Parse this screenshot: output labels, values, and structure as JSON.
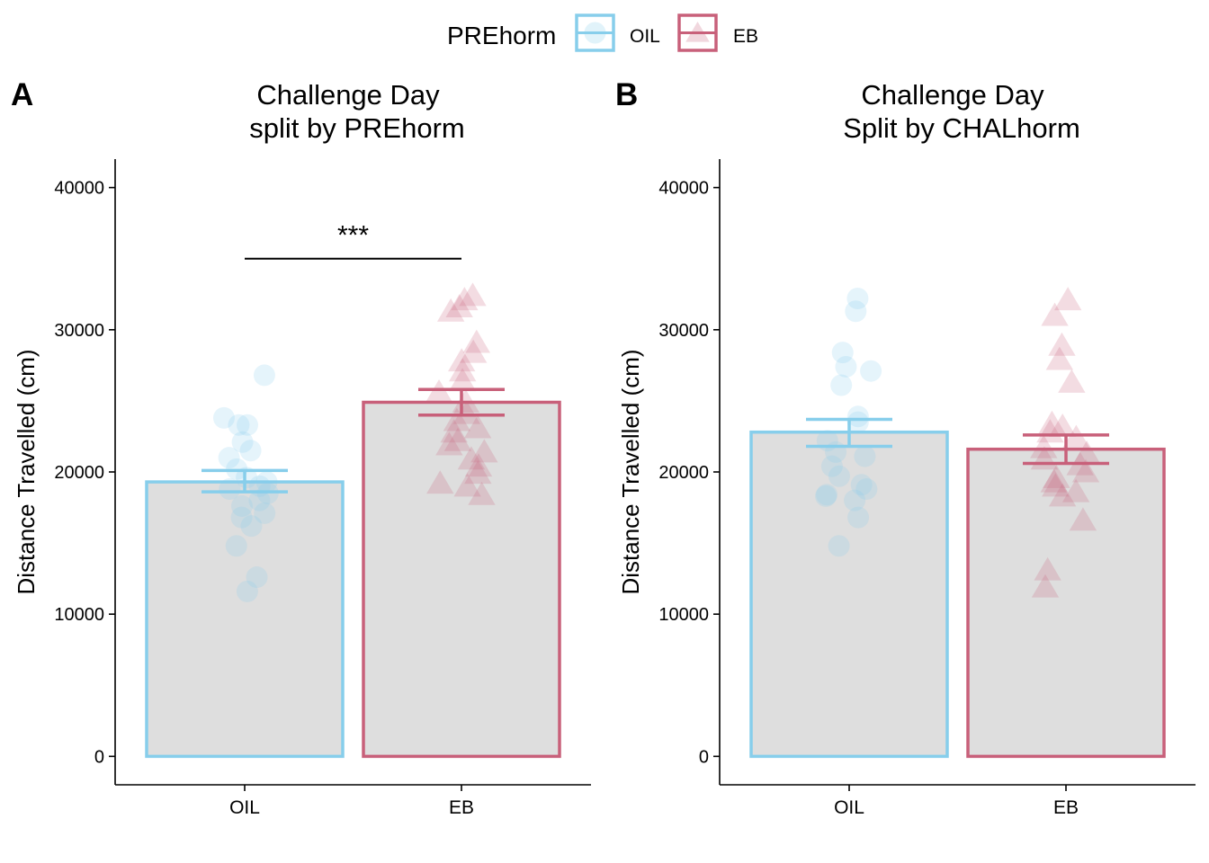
{
  "legend": {
    "title": "PREhorm",
    "items": [
      {
        "label": "OIL",
        "color": "#87CEEB",
        "shape": "circle"
      },
      {
        "label": "EB",
        "color": "#C8607A",
        "shape": "triangle"
      }
    ]
  },
  "chart_data": [
    {
      "type": "bar",
      "panel_label": "A",
      "title": "Challenge Day",
      "subtitle": "split by PREhorm",
      "xlabel": "",
      "ylabel": "Distance Travelled (cm)",
      "ylim": [
        -2000,
        42000
      ],
      "yticks": [
        0,
        10000,
        20000,
        30000,
        40000
      ],
      "categories": [
        "OIL",
        "EB"
      ],
      "colors": [
        "#87CEEB",
        "#C8607A"
      ],
      "values": [
        19300,
        24900
      ],
      "error": [
        [
          18600,
          20100
        ],
        [
          24000,
          25800
        ]
      ],
      "points": [
        {
          "group": "OIL",
          "values": [
            26800,
            23800,
            23300,
            23300,
            22100,
            21500,
            21000,
            20200,
            19600,
            19300,
            19000,
            18800,
            18500,
            18000,
            17600,
            17100,
            16800,
            16200,
            14800,
            12600,
            11600
          ]
        },
        {
          "group": "EB",
          "values": [
            32300,
            32000,
            31500,
            31200,
            29000,
            28300,
            27700,
            27000,
            26300,
            25500,
            24800,
            24000,
            23500,
            23000,
            22700,
            22100,
            21800,
            21300,
            20800,
            20300,
            19800,
            19100,
            18900,
            18300
          ]
        }
      ],
      "significance": {
        "label": "***",
        "from": "OIL",
        "to": "EB",
        "y": 35000
      }
    },
    {
      "type": "bar",
      "panel_label": "B",
      "title": "Challenge Day",
      "subtitle": "Split by CHALhorm",
      "xlabel": "",
      "ylabel": "Distance Travelled (cm)",
      "ylim": [
        -2000,
        42000
      ],
      "yticks": [
        0,
        10000,
        20000,
        30000,
        40000
      ],
      "categories": [
        "OIL",
        "EB"
      ],
      "colors": [
        "#87CEEB",
        "#C8607A"
      ],
      "values": [
        22800,
        21600
      ],
      "error": [
        [
          21800,
          23700
        ],
        [
          20600,
          22600
        ]
      ],
      "points": [
        {
          "group": "OIL",
          "values": [
            32200,
            31300,
            28400,
            27400,
            27100,
            26100,
            23900,
            23500,
            22200,
            21400,
            21100,
            20400,
            19700,
            19100,
            18800,
            18400,
            18300,
            18000,
            16800,
            14800
          ]
        },
        {
          "group": "EB",
          "values": [
            32000,
            30900,
            28800,
            27800,
            26200,
            23300,
            23100,
            22700,
            22300,
            21600,
            21200,
            20800,
            20400,
            19900,
            19500,
            19200,
            18900,
            18500,
            18200,
            16500,
            13000,
            11800
          ]
        }
      ],
      "significance": null
    }
  ]
}
